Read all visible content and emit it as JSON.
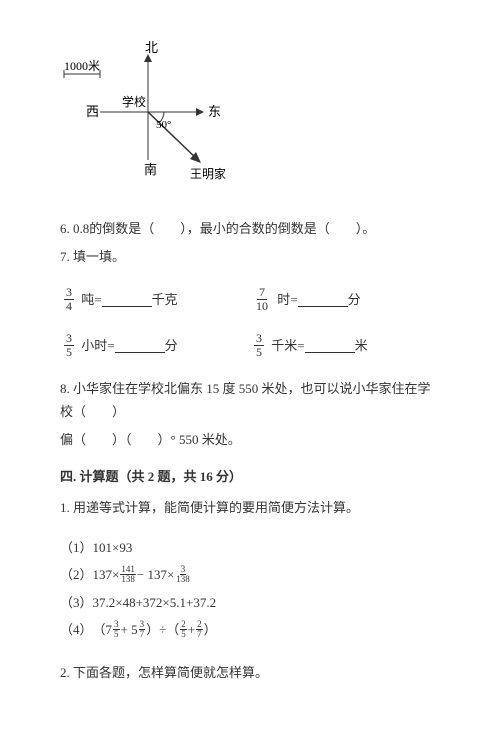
{
  "diagram": {
    "north": "北",
    "south": "南",
    "east": "东",
    "west": "西",
    "school": "学校",
    "scale": "1000米",
    "angle": "50°",
    "dest": "王明家",
    "line_color": "#333",
    "background": "#fff"
  },
  "q6": {
    "text_a": "6. 0.8的倒数是（　　），最小的合数的倒数是（　　）。"
  },
  "q7": {
    "label": "7. 填一填。",
    "rows": [
      {
        "frac_n": "3",
        "frac_d": "4",
        "unit_a": "吨=",
        "unit_b": "千克",
        "frac2_n": "7",
        "frac2_d": "10",
        "unit2_a": "时=",
        "unit2_b": "分"
      },
      {
        "frac_n": "3",
        "frac_d": "5",
        "unit_a": "小时=",
        "unit_b": "分",
        "frac2_n": "3",
        "frac2_d": "5",
        "unit2_a": "千米=",
        "unit2_b": "米"
      }
    ]
  },
  "q8": {
    "line1": "8. 小华家住在学校北偏东 15 度 550 米处，也可以说小华家住在学校（　　）",
    "line2": "偏（　　）（　　）° 550 米处。"
  },
  "section4": {
    "title": "四. 计算题（共 2 题，共 16 分）",
    "q1_label": "1. 用递等式计算，能简便计算的要用简便方法计算。",
    "items": [
      {
        "label": "（1）",
        "expr": "101×93"
      },
      {
        "label": "（2）",
        "parts": [
          "137×",
          {
            "n": "141",
            "d": "138"
          },
          " − 137×",
          {
            "n": "3",
            "d": "138"
          }
        ]
      },
      {
        "label": "（3）",
        "expr": "37.2×48+372×5.1+37.2"
      },
      {
        "label": "（4）",
        "parts": [
          "（7",
          {
            "n": "3",
            "d": "5"
          },
          " + 5",
          {
            "n": "3",
            "d": "7"
          },
          "）÷（",
          {
            "n": "2",
            "d": "5"
          },
          " + ",
          {
            "n": "2",
            "d": "7"
          },
          "）"
        ]
      }
    ],
    "q2_label": "2. 下面各题，怎样算简便就怎样算。"
  }
}
